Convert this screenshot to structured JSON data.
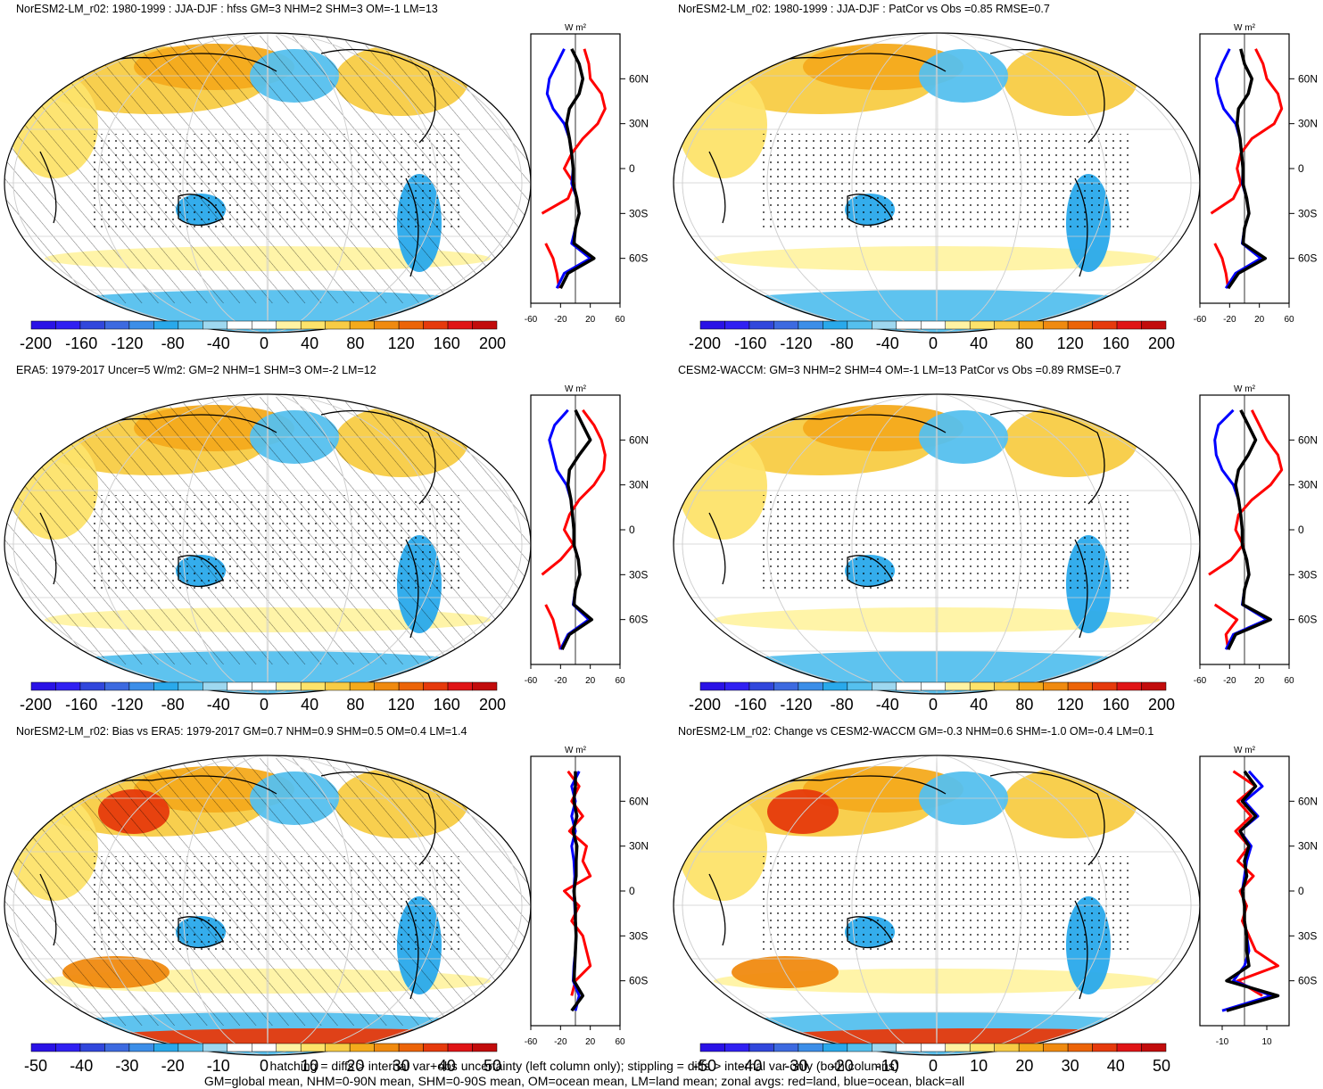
{
  "colors": {
    "land": "#ff0000",
    "ocean": "#0000ff",
    "all": "#000000",
    "palette": [
      "#2a12e6",
      "#3020f2",
      "#3147dc",
      "#3d6ae0",
      "#3c8ee8",
      "#29a9eb",
      "#55c0ee",
      "#9ed8f0",
      "#ffffff",
      "#ffffff",
      "#fff3a3",
      "#fde36a",
      "#f8cc45",
      "#f4aa1c",
      "#f08a10",
      "#ec6408",
      "#e63a0c",
      "#e01416",
      "#c20c0c"
    ]
  },
  "footer": {
    "line1": "hatching = diffs > internal var+obs uncertainty (left column only); stippling = diffs > internal var only (both columns)",
    "line2": "GM=global mean, NHM=0-90N mean, SHM=0-90S mean, OM=ocean mean, LM=land mean; zonal avgs: red=land, blue=ocean, black=all"
  },
  "panels": [
    {
      "title": "NorESM2-LM_r02: 1980-1999 : JJA-DJF : hfss GM=3 NHM=2 SHM=3 OM=-1 LM=13",
      "zonal_unit": "W m²",
      "lat_labels": [
        "60N",
        "30N",
        "0",
        "30S",
        "60S"
      ],
      "x_ticks": [
        "-60",
        "-20",
        "20",
        "60"
      ],
      "colorbar_labels": [
        "-200",
        "-160",
        "-120",
        "-80",
        "-40",
        "0",
        "40",
        "80",
        "120",
        "160",
        "200"
      ],
      "hatching": true
    },
    {
      "title": "NorESM2-LM_r02: 1980-1999 : JJA-DJF : PatCor vs Obs =0.85 RMSE=0.7",
      "zonal_unit": "W m²",
      "lat_labels": [
        "60N",
        "30N",
        "0",
        "30S",
        "60S"
      ],
      "x_ticks": [
        "-60",
        "-20",
        "20",
        "60"
      ],
      "colorbar_labels": [
        "-200",
        "-160",
        "-120",
        "-80",
        "-40",
        "0",
        "40",
        "80",
        "120",
        "160",
        "200"
      ],
      "hatching": false
    },
    {
      "title": "ERA5: 1979-2017 Uncer=5 W/m2: GM=2 NHM=1 SHM=3 OM=-2 LM=12",
      "zonal_unit": "W m²",
      "lat_labels": [
        "60N",
        "30N",
        "0",
        "30S",
        "60S"
      ],
      "x_ticks": [
        "-60",
        "-20",
        "20",
        "60"
      ],
      "colorbar_labels": [
        "-200",
        "-160",
        "-120",
        "-80",
        "-40",
        "0",
        "40",
        "80",
        "120",
        "160",
        "200"
      ],
      "hatching": true
    },
    {
      "title": "CESM2-WACCM: GM=3 NHM=2 SHM=4 OM=-1 LM=13 PatCor vs Obs =0.89 RMSE=0.7",
      "zonal_unit": "W m²",
      "lat_labels": [
        "60N",
        "30N",
        "0",
        "30S",
        "60S"
      ],
      "x_ticks": [
        "-60",
        "-20",
        "20",
        "60"
      ],
      "colorbar_labels": [
        "-200",
        "-160",
        "-120",
        "-80",
        "-40",
        "0",
        "40",
        "80",
        "120",
        "160",
        "200"
      ],
      "hatching": false
    },
    {
      "title": "NorESM2-LM_r02: Bias vs ERA5: 1979-2017 GM=0.7 NHM=0.9 SHM=0.5 OM=0.4 LM=1.4",
      "zonal_unit": "W m²",
      "lat_labels": [
        "60N",
        "30N",
        "0",
        "30S",
        "60S"
      ],
      "x_ticks": [
        "-60",
        "-20",
        "20",
        "60"
      ],
      "colorbar_labels": [
        "-50",
        "-40",
        "-30",
        "-20",
        "-10",
        "0",
        "10",
        "20",
        "30",
        "40",
        "50"
      ],
      "hatching": true
    },
    {
      "title": "NorESM2-LM_r02: Change vs CESM2-WACCM GM=-0.3 NHM=0.6 SHM=-1.0 OM=-0.4 LM=0.1",
      "zonal_unit": "W m²",
      "lat_labels": [
        "60N",
        "30N",
        "0",
        "30S",
        "60S"
      ],
      "x_ticks": [
        "-10",
        "10"
      ],
      "colorbar_labels": [
        "-50",
        "-40",
        "-30",
        "-20",
        "-10",
        "0",
        "10",
        "20",
        "30",
        "40",
        "50"
      ],
      "hatching": false
    }
  ],
  "chart_data": [
    {
      "type": "line",
      "title": "NorESM2-LM_r02: 1980-1999 : JJA-DJF : hfss GM=3 NHM=2 SHM=3 OM=-1 LM=13",
      "xlim": [
        -60,
        60
      ],
      "ylim": [
        -90,
        90
      ],
      "y": [
        80,
        70,
        60,
        50,
        40,
        30,
        20,
        10,
        0,
        -10,
        -20,
        -30,
        -40,
        -50,
        -60,
        -70,
        -80
      ],
      "series": [
        {
          "name": "land",
          "color": "#ff0000",
          "values": [
            12,
            18,
            20,
            35,
            40,
            30,
            10,
            -5,
            -15,
            -2,
            -10,
            -45,
            null,
            -40,
            -30,
            -25,
            -22
          ]
        },
        {
          "name": "ocean",
          "color": "#0000ff",
          "values": [
            -15,
            -25,
            -35,
            -38,
            -30,
            -15,
            -8,
            -5,
            -3,
            -5,
            2,
            5,
            0,
            -5,
            20,
            -15,
            -25
          ]
        },
        {
          "name": "all",
          "color": "#000000",
          "values": [
            -5,
            5,
            10,
            5,
            -8,
            -12,
            -8,
            -5,
            -3,
            -3,
            2,
            5,
            0,
            -2,
            25,
            -10,
            -20
          ]
        }
      ]
    },
    {
      "type": "line",
      "title": "NorESM2-LM_r02: 1980-1999 : JJA-DJF : PatCor vs Obs =0.85 RMSE=0.7",
      "xlim": [
        -60,
        60
      ],
      "ylim": [
        -90,
        90
      ],
      "y": [
        80,
        70,
        60,
        50,
        40,
        30,
        20,
        10,
        0,
        -10,
        -20,
        -30,
        -40,
        -50,
        -60,
        -70,
        -80
      ],
      "series": [
        {
          "name": "land",
          "color": "#ff0000",
          "values": [
            15,
            25,
            30,
            45,
            50,
            40,
            10,
            -5,
            -10,
            -5,
            -15,
            -45,
            null,
            -40,
            -30,
            -25,
            -22
          ]
        },
        {
          "name": "ocean",
          "color": "#0000ff",
          "values": [
            -20,
            -30,
            -38,
            -35,
            -28,
            -12,
            -6,
            -4,
            -2,
            -3,
            3,
            6,
            0,
            -3,
            22,
            -12,
            -25
          ]
        },
        {
          "name": "all",
          "color": "#000000",
          "values": [
            -5,
            0,
            10,
            5,
            -8,
            -10,
            -6,
            -4,
            -2,
            -2,
            3,
            6,
            0,
            -2,
            28,
            -8,
            -22
          ]
        }
      ]
    },
    {
      "type": "line",
      "title": "ERA5: 1979-2017 Uncer=5 W/m2: GM=2 NHM=1 SHM=3 OM=-2 LM=12",
      "xlim": [
        -60,
        60
      ],
      "ylim": [
        -90,
        90
      ],
      "y": [
        80,
        70,
        60,
        50,
        40,
        30,
        20,
        10,
        0,
        -10,
        -20,
        -30,
        -40,
        -50,
        -60,
        -70,
        -80
      ],
      "series": [
        {
          "name": "land",
          "color": "#ff0000",
          "values": [
            10,
            25,
            35,
            40,
            38,
            25,
            5,
            -8,
            -15,
            -3,
            -20,
            -45,
            null,
            -40,
            -30,
            -25,
            -20
          ]
        },
        {
          "name": "ocean",
          "color": "#0000ff",
          "values": [
            -10,
            -28,
            -35,
            -30,
            -25,
            -12,
            -6,
            -4,
            -2,
            -2,
            4,
            6,
            0,
            -3,
            18,
            -10,
            -20
          ]
        },
        {
          "name": "all",
          "color": "#000000",
          "values": [
            0,
            10,
            20,
            5,
            -8,
            -10,
            -6,
            -4,
            -2,
            -2,
            4,
            6,
            0,
            -2,
            22,
            -8,
            -18
          ]
        }
      ]
    },
    {
      "type": "line",
      "title": "CESM2-WACCM: GM=3 NHM=2 SHM=4 OM=-1 LM=13 PatCor vs Obs =0.89 RMSE=0.7",
      "xlim": [
        -60,
        60
      ],
      "ylim": [
        -90,
        90
      ],
      "y": [
        80,
        70,
        60,
        50,
        40,
        30,
        20,
        10,
        0,
        -10,
        -20,
        -30,
        -40,
        -50,
        -60,
        -70,
        -80
      ],
      "series": [
        {
          "name": "land",
          "color": "#ff0000",
          "values": [
            10,
            20,
            30,
            45,
            50,
            35,
            10,
            -8,
            -12,
            -2,
            -18,
            -48,
            null,
            -40,
            -10,
            -25,
            -22
          ]
        },
        {
          "name": "ocean",
          "color": "#0000ff",
          "values": [
            -15,
            -35,
            -40,
            -38,
            -30,
            -15,
            -8,
            -5,
            -3,
            -3,
            3,
            6,
            0,
            -3,
            30,
            -15,
            -25
          ]
        },
        {
          "name": "all",
          "color": "#000000",
          "values": [
            -5,
            5,
            15,
            5,
            -8,
            -12,
            -8,
            -5,
            -3,
            -3,
            3,
            6,
            0,
            -2,
            35,
            -12,
            -22
          ]
        }
      ]
    },
    {
      "type": "line",
      "title": "NorESM2-LM_r02: Bias vs ERA5: 1979-2017 GM=0.7 NHM=0.9 SHM=0.5 OM=0.4 LM=1.4",
      "xlim": [
        -60,
        60
      ],
      "ylim": [
        -90,
        90
      ],
      "y": [
        80,
        70,
        60,
        50,
        40,
        30,
        20,
        10,
        0,
        -10,
        -20,
        -30,
        -40,
        -50,
        -60,
        -70,
        -80
      ],
      "series": [
        {
          "name": "land",
          "color": "#ff0000",
          "values": [
            -10,
            5,
            -5,
            10,
            -8,
            15,
            10,
            20,
            -15,
            5,
            -5,
            10,
            15,
            20,
            0,
            -5,
            null
          ]
        },
        {
          "name": "ocean",
          "color": "#0000ff",
          "values": [
            5,
            -5,
            0,
            -5,
            0,
            -5,
            -2,
            -1,
            -2,
            -1,
            0,
            1,
            0,
            -2,
            -3,
            5,
            0
          ]
        },
        {
          "name": "all",
          "color": "#000000",
          "values": [
            0,
            0,
            -2,
            2,
            -3,
            2,
            1,
            1,
            -2,
            0,
            0,
            1,
            0,
            -1,
            -2,
            10,
            -5
          ]
        }
      ]
    },
    {
      "type": "line",
      "title": "NorESM2-LM_r02: Change vs CESM2-WACCM GM=-0.3 NHM=0.6 SHM=-1.0 OM=-0.4 LM=0.1",
      "xlim": [
        -20,
        20
      ],
      "ylim": [
        -90,
        90
      ],
      "y": [
        80,
        70,
        60,
        50,
        40,
        30,
        20,
        10,
        0,
        -10,
        -20,
        -30,
        -40,
        -50,
        -60,
        -70,
        -80
      ],
      "series": [
        {
          "name": "land",
          "color": "#ff0000",
          "values": [
            -5,
            5,
            -3,
            3,
            -4,
            2,
            -3,
            4,
            -2,
            1,
            -1,
            2,
            5,
            15,
            -3,
            8,
            null
          ]
        },
        {
          "name": "ocean",
          "color": "#0000ff",
          "values": [
            2,
            8,
            0,
            6,
            -2,
            3,
            1,
            0,
            -1,
            0,
            0,
            1,
            2,
            0,
            -5,
            12,
            -10
          ]
        },
        {
          "name": "all",
          "color": "#000000",
          "values": [
            0,
            5,
            -1,
            5,
            -2,
            2,
            0,
            1,
            -1,
            0,
            0,
            1,
            1,
            2,
            -8,
            15,
            -8
          ]
        }
      ]
    }
  ]
}
